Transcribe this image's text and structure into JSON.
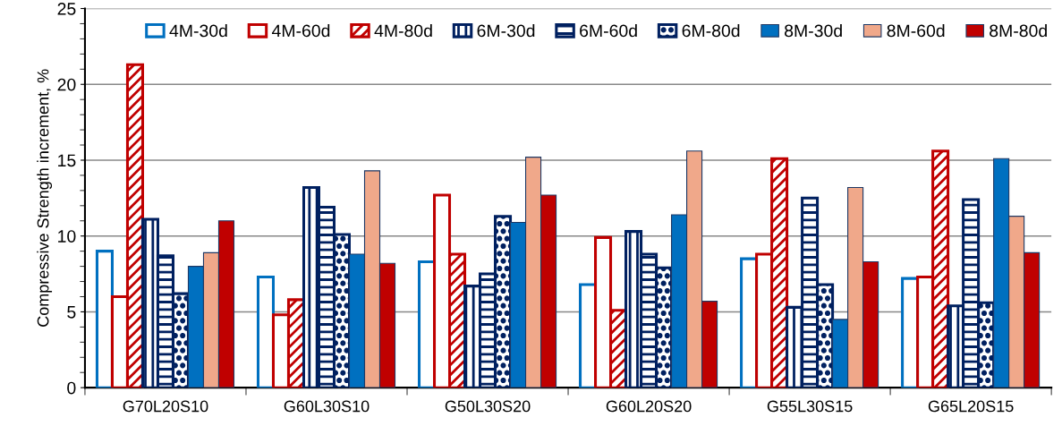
{
  "chart_data": {
    "type": "bar",
    "ylabel": "Compressive Strength increment, %",
    "categories": [
      "G70L20S10",
      "G60L30S10",
      "G50L30S20",
      "G60L20S20",
      "G55L30S15",
      "G65L20S15"
    ],
    "series": [
      {
        "name": "4M-30d",
        "color": "#0070c0",
        "values": [
          9.0,
          7.3,
          8.3,
          6.8,
          8.5,
          7.2
        ]
      },
      {
        "name": "4M-60d",
        "color": "#c00000",
        "values": [
          6.0,
          4.8,
          12.7,
          9.9,
          8.8,
          7.3
        ]
      },
      {
        "name": "4M-80d",
        "color": "#c00000",
        "values": [
          21.3,
          5.8,
          8.8,
          5.1,
          15.1,
          15.6
        ]
      },
      {
        "name": "6M-30d",
        "color": "#002060",
        "values": [
          11.1,
          13.2,
          6.7,
          10.3,
          5.3,
          5.4
        ]
      },
      {
        "name": "6M-60d",
        "color": "#002060",
        "values": [
          8.7,
          11.9,
          7.5,
          8.8,
          12.5,
          12.4
        ]
      },
      {
        "name": "6M-80d",
        "color": "#002060",
        "values": [
          6.2,
          10.1,
          11.3,
          7.9,
          6.8,
          5.6
        ]
      },
      {
        "name": "8M-30d",
        "color": "#0070c0",
        "values": [
          8.0,
          8.8,
          10.9,
          11.4,
          4.5,
          15.1
        ]
      },
      {
        "name": "8M-60d",
        "color": "#f0a88a",
        "values": [
          8.9,
          14.3,
          15.2,
          15.6,
          13.2,
          11.3
        ]
      },
      {
        "name": "8M-80d",
        "color": "#c00000",
        "values": [
          11.0,
          8.2,
          12.7,
          5.7,
          8.3,
          8.9
        ]
      }
    ],
    "ylim": [
      0,
      25
    ],
    "yticks": [
      0,
      5,
      10,
      15,
      20,
      25
    ],
    "grid": "y",
    "legend": "top"
  }
}
